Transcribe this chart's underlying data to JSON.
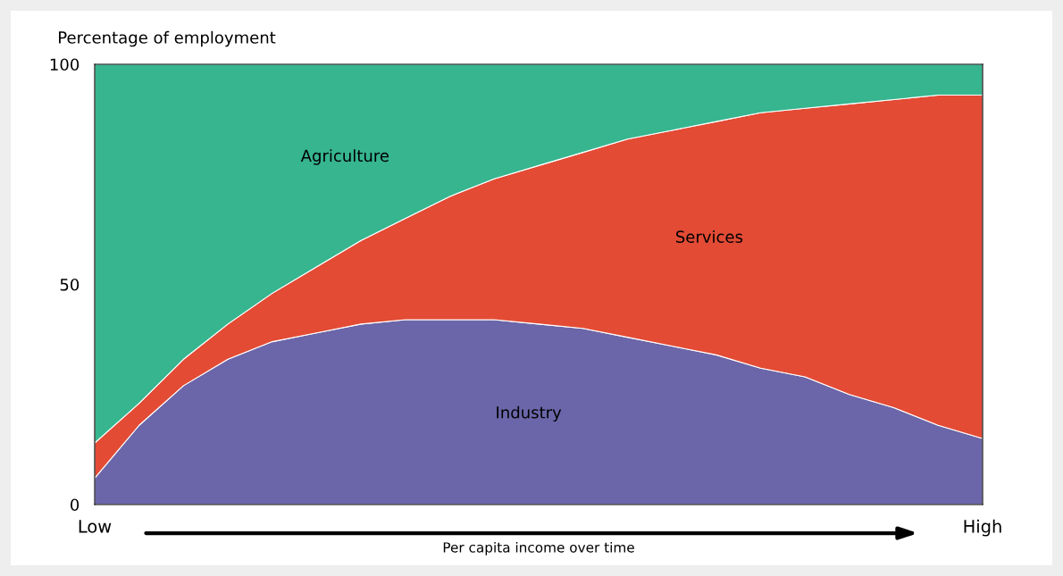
{
  "chart_data": {
    "type": "area",
    "stacked": true,
    "ylabel": "Percentage of employment",
    "xlabel": "Per capita income over time",
    "categories": [
      "Low",
      null,
      null,
      null,
      null,
      null,
      null,
      null,
      null,
      null,
      null,
      null,
      null,
      null,
      null,
      null,
      null,
      null,
      null,
      null,
      "High"
    ],
    "ylim": [
      0,
      100
    ],
    "yticks": [
      0,
      50,
      100
    ],
    "legend": false,
    "series": [
      {
        "name": "Industry",
        "color": "#6b66a9",
        "values": [
          6,
          18,
          27,
          33,
          37,
          39,
          41,
          42,
          42,
          42,
          41,
          40,
          38,
          36,
          34,
          31,
          29,
          25,
          22,
          18,
          15
        ]
      },
      {
        "name": "Services",
        "color": "#e34b35",
        "values": [
          8,
          5,
          6,
          8,
          11,
          15,
          19,
          23,
          28,
          32,
          36,
          40,
          45,
          49,
          53,
          58,
          61,
          66,
          70,
          75,
          78
        ]
      },
      {
        "name": "Agriculture",
        "color": "#36b58f",
        "values": [
          86,
          77,
          67,
          59,
          52,
          46,
          40,
          35,
          30,
          26,
          23,
          20,
          17,
          15,
          13,
          11,
          10,
          9,
          8,
          7,
          7
        ]
      }
    ]
  }
}
